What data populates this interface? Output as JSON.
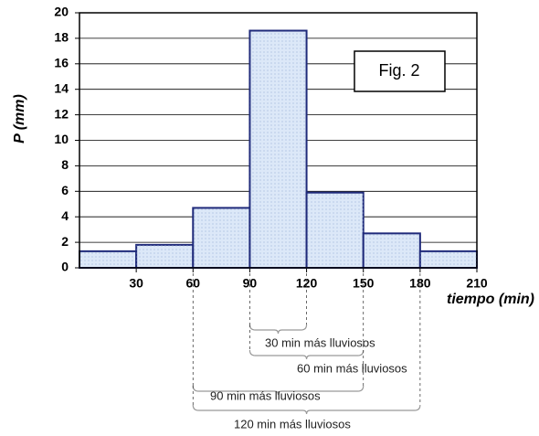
{
  "chart_data": {
    "type": "histogram",
    "ylabel": "P (mm)",
    "xlabel": "tiempo (min)",
    "annotation": "Fig. 2",
    "bins": [
      0,
      30,
      60,
      90,
      120,
      150,
      180,
      210
    ],
    "values": [
      1.3,
      1.8,
      4.7,
      18.6,
      5.9,
      2.7,
      1.3
    ],
    "color": "#dce8f8",
    "edgecolor": "#1f2a7a",
    "xlim": [
      0,
      210
    ],
    "xticks": [
      30,
      60,
      90,
      120,
      150,
      180,
      210
    ],
    "ylim": [
      0,
      20
    ],
    "yticks": [
      0,
      2,
      4,
      6,
      8,
      10,
      12,
      14,
      16,
      18,
      20
    ],
    "grid": true,
    "brackets": [
      {
        "label": "30 min más lluviosos",
        "range": [
          90,
          120
        ]
      },
      {
        "label": "60 min más lluviosos",
        "range": [
          90,
          150
        ]
      },
      {
        "label": "90 min más lluviosos",
        "range": [
          60,
          150
        ]
      },
      {
        "label": "120 min más lluviosos",
        "range": [
          60,
          180
        ]
      }
    ]
  }
}
